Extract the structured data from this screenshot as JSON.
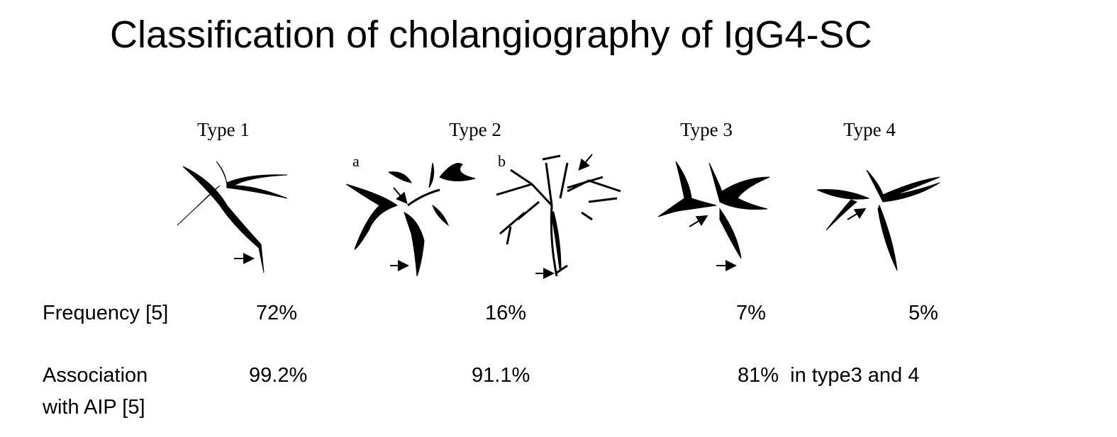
{
  "title": "Classification of cholangiography of IgG4-SC",
  "types": [
    "Type 1",
    "Type 2",
    "Type 3",
    "Type 4"
  ],
  "subtypes": [
    "a",
    "b"
  ],
  "rows": [
    {
      "label_lines": [
        "Frequency [5]"
      ],
      "values": [
        "72%",
        "16%",
        "7%",
        "5%"
      ]
    },
    {
      "label_lines": [
        "Association",
        "with AIP [5]"
      ],
      "values": [
        "99.2%",
        "91.1%",
        "81%  in type3 and 4"
      ]
    }
  ]
}
